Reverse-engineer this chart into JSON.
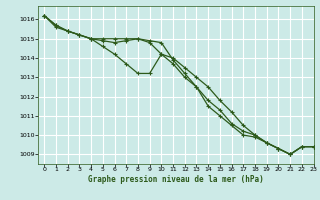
{
  "title": "Graphe pression niveau de la mer (hPa)",
  "background_color": "#cceae7",
  "grid_color": "#ffffff",
  "line_color": "#2d5a1b",
  "xlim": [
    -0.5,
    23
  ],
  "ylim": [
    1008.5,
    1016.7
  ],
  "yticks": [
    1009,
    1010,
    1011,
    1012,
    1013,
    1014,
    1015,
    1016
  ],
  "xticks": [
    0,
    1,
    2,
    3,
    4,
    5,
    6,
    7,
    8,
    9,
    10,
    11,
    12,
    13,
    14,
    15,
    16,
    17,
    18,
    19,
    20,
    21,
    22,
    23
  ],
  "series1": [
    1016.2,
    1015.7,
    1015.4,
    1015.2,
    1015.0,
    1015.0,
    1015.0,
    1015.0,
    1015.0,
    1014.9,
    1014.8,
    1013.9,
    1013.2,
    1012.5,
    1011.8,
    1011.3,
    1010.6,
    1010.2,
    1010.0,
    1009.6,
    1009.3,
    1009.0,
    1009.4,
    1009.4
  ],
  "series2": [
    1016.2,
    1015.7,
    1015.4,
    1015.2,
    1015.0,
    1014.9,
    1014.8,
    1014.9,
    1015.0,
    1014.8,
    1014.2,
    1013.7,
    1013.0,
    1012.5,
    1011.5,
    1011.0,
    1010.5,
    1010.0,
    1009.9,
    1009.6,
    1009.3,
    1009.0,
    1009.4,
    1009.4
  ],
  "series3": [
    1016.2,
    1015.6,
    1015.4,
    1015.2,
    1015.0,
    1014.6,
    1014.2,
    1013.7,
    1013.2,
    1013.2,
    1014.2,
    1014.0,
    1013.5,
    1013.0,
    1012.5,
    1011.8,
    1011.2,
    1010.5,
    1010.0,
    1009.6,
    1009.3,
    1009.0,
    1009.4,
    1009.4
  ]
}
